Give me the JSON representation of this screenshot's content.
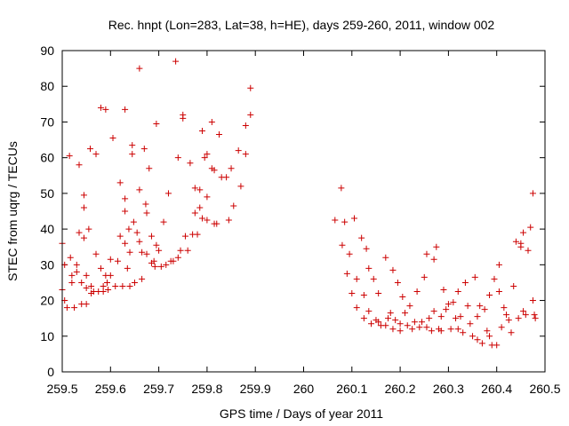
{
  "chart_data": {
    "type": "scatter",
    "title": "Rec. hnpt (Lon=283, Lat=38, h=HE), days 259-260, 2011, window 002",
    "xlabel": "GPS time / Days of year 2011",
    "ylabel": "STEC from uqrg / TECUs",
    "xlim": [
      259.5,
      260.5
    ],
    "ylim": [
      0,
      90
    ],
    "xticks": [
      "259.5",
      "259.6",
      "259.7",
      "259.8",
      "259.9",
      "260",
      "260.1",
      "260.2",
      "260.3",
      "260.4",
      "260.5"
    ],
    "yticks": [
      "0",
      "10",
      "20",
      "30",
      "40",
      "50",
      "60",
      "70",
      "80",
      "90"
    ],
    "grid": false,
    "legend": "none",
    "marker": "+",
    "color": "#cc0000",
    "points": [
      [
        259.5,
        36
      ],
      [
        259.5,
        23
      ],
      [
        259.505,
        30
      ],
      [
        259.505,
        20
      ],
      [
        259.51,
        18
      ],
      [
        259.515,
        60.5
      ],
      [
        259.517,
        32
      ],
      [
        259.52,
        27
      ],
      [
        259.52,
        25
      ],
      [
        259.525,
        18
      ],
      [
        259.53,
        30
      ],
      [
        259.53,
        28
      ],
      [
        259.535,
        58
      ],
      [
        259.535,
        39
      ],
      [
        259.54,
        25
      ],
      [
        259.54,
        19
      ],
      [
        259.545,
        49.5
      ],
      [
        259.545,
        46
      ],
      [
        259.545,
        37.5
      ],
      [
        259.55,
        27
      ],
      [
        259.55,
        23.5
      ],
      [
        259.55,
        19
      ],
      [
        259.555,
        40
      ],
      [
        259.558,
        62.5
      ],
      [
        259.56,
        24
      ],
      [
        259.56,
        22
      ],
      [
        259.565,
        22.5
      ],
      [
        259.57,
        61
      ],
      [
        259.57,
        33
      ],
      [
        259.575,
        22.5
      ],
      [
        259.58,
        74
      ],
      [
        259.58,
        29
      ],
      [
        259.585,
        24
      ],
      [
        259.585,
        22.5
      ],
      [
        259.59,
        73.5
      ],
      [
        259.59,
        27
      ],
      [
        259.593,
        25
      ],
      [
        259.595,
        23
      ],
      [
        259.6,
        31.5
      ],
      [
        259.6,
        27
      ],
      [
        259.605,
        65.5
      ],
      [
        259.61,
        24
      ],
      [
        259.615,
        31
      ],
      [
        259.62,
        53
      ],
      [
        259.62,
        38
      ],
      [
        259.625,
        24
      ],
      [
        259.63,
        73.5
      ],
      [
        259.63,
        48.5
      ],
      [
        259.63,
        45
      ],
      [
        259.63,
        36
      ],
      [
        259.635,
        29
      ],
      [
        259.638,
        40
      ],
      [
        259.64,
        24
      ],
      [
        259.64,
        33.5
      ],
      [
        259.645,
        63.5
      ],
      [
        259.645,
        61
      ],
      [
        259.648,
        42
      ],
      [
        259.65,
        25
      ],
      [
        259.655,
        39
      ],
      [
        259.66,
        85
      ],
      [
        259.66,
        51
      ],
      [
        259.66,
        36.5
      ],
      [
        259.665,
        26
      ],
      [
        259.665,
        33.5
      ],
      [
        259.67,
        62.5
      ],
      [
        259.673,
        47
      ],
      [
        259.675,
        44.5
      ],
      [
        259.675,
        33
      ],
      [
        259.68,
        57
      ],
      [
        259.685,
        38
      ],
      [
        259.685,
        30.5
      ],
      [
        259.69,
        31
      ],
      [
        259.692,
        29.5
      ],
      [
        259.695,
        69.5
      ],
      [
        259.695,
        35.5
      ],
      [
        259.7,
        34
      ],
      [
        259.705,
        29.5
      ],
      [
        259.71,
        42
      ],
      [
        259.715,
        30
      ],
      [
        259.72,
        50
      ],
      [
        259.725,
        31
      ],
      [
        259.73,
        31
      ],
      [
        259.735,
        87
      ],
      [
        259.74,
        60
      ],
      [
        259.74,
        32
      ],
      [
        259.745,
        34
      ],
      [
        259.75,
        72
      ],
      [
        259.75,
        71
      ],
      [
        259.755,
        38
      ],
      [
        259.76,
        34
      ],
      [
        259.765,
        58.5
      ],
      [
        259.77,
        38.5
      ],
      [
        259.775,
        51.5
      ],
      [
        259.775,
        44.5
      ],
      [
        259.78,
        38.5
      ],
      [
        259.785,
        51
      ],
      [
        259.785,
        46
      ],
      [
        259.79,
        67.5
      ],
      [
        259.79,
        43
      ],
      [
        259.795,
        60
      ],
      [
        259.8,
        61
      ],
      [
        259.8,
        49
      ],
      [
        259.8,
        42.5
      ],
      [
        259.81,
        70
      ],
      [
        259.81,
        57
      ],
      [
        259.815,
        56.5
      ],
      [
        259.815,
        41.5
      ],
      [
        259.82,
        41.5
      ],
      [
        259.825,
        66.5
      ],
      [
        259.83,
        54.5
      ],
      [
        259.84,
        54.5
      ],
      [
        259.845,
        42.5
      ],
      [
        259.85,
        57
      ],
      [
        259.855,
        46.5
      ],
      [
        259.865,
        62
      ],
      [
        259.87,
        52
      ],
      [
        259.88,
        61
      ],
      [
        259.88,
        69
      ],
      [
        259.89,
        79.5
      ],
      [
        259.89,
        72
      ],
      [
        260.065,
        42.5
      ],
      [
        260.078,
        51.5
      ],
      [
        260.08,
        35.5
      ],
      [
        260.085,
        42
      ],
      [
        260.09,
        27.5
      ],
      [
        260.095,
        33
      ],
      [
        260.1,
        22
      ],
      [
        260.105,
        43
      ],
      [
        260.11,
        26
      ],
      [
        260.11,
        18
      ],
      [
        260.12,
        37.5
      ],
      [
        260.125,
        21.5
      ],
      [
        260.125,
        15
      ],
      [
        260.13,
        34.5
      ],
      [
        260.135,
        29
      ],
      [
        260.135,
        17
      ],
      [
        260.14,
        13.5
      ],
      [
        260.145,
        26
      ],
      [
        260.15,
        14.5
      ],
      [
        260.155,
        22
      ],
      [
        260.155,
        14
      ],
      [
        260.16,
        13
      ],
      [
        260.17,
        32
      ],
      [
        260.17,
        13
      ],
      [
        260.175,
        15
      ],
      [
        260.18,
        16.5
      ],
      [
        260.185,
        12
      ],
      [
        260.185,
        28.5
      ],
      [
        260.19,
        14.5
      ],
      [
        260.195,
        25
      ],
      [
        260.2,
        13.5
      ],
      [
        260.2,
        11.5
      ],
      [
        260.205,
        21
      ],
      [
        260.21,
        16.5
      ],
      [
        260.215,
        13
      ],
      [
        260.22,
        18.5
      ],
      [
        260.225,
        12
      ],
      [
        260.23,
        14
      ],
      [
        260.235,
        22.5
      ],
      [
        260.24,
        12.5
      ],
      [
        260.245,
        14
      ],
      [
        260.25,
        26.5
      ],
      [
        260.255,
        33
      ],
      [
        260.255,
        12.5
      ],
      [
        260.26,
        15
      ],
      [
        260.265,
        11.5
      ],
      [
        260.27,
        31.5
      ],
      [
        260.27,
        17
      ],
      [
        260.275,
        35
      ],
      [
        260.28,
        12
      ],
      [
        260.285,
        15.5
      ],
      [
        260.285,
        11.5
      ],
      [
        260.29,
        23
      ],
      [
        260.295,
        17.5
      ],
      [
        260.3,
        19
      ],
      [
        260.305,
        12
      ],
      [
        260.31,
        19.5
      ],
      [
        260.315,
        15
      ],
      [
        260.32,
        12
      ],
      [
        260.32,
        22.5
      ],
      [
        260.325,
        15.5
      ],
      [
        260.33,
        11
      ],
      [
        260.335,
        25
      ],
      [
        260.34,
        18.5
      ],
      [
        260.345,
        13.5
      ],
      [
        260.35,
        10
      ],
      [
        260.355,
        26.5
      ],
      [
        260.36,
        15.5
      ],
      [
        260.36,
        9
      ],
      [
        260.365,
        18.5
      ],
      [
        260.37,
        8
      ],
      [
        260.375,
        17.5
      ],
      [
        260.38,
        11.5
      ],
      [
        260.385,
        21.5
      ],
      [
        260.385,
        10
      ],
      [
        260.39,
        7.5
      ],
      [
        260.395,
        26
      ],
      [
        260.4,
        7.5
      ],
      [
        260.405,
        30
      ],
      [
        260.405,
        22.5
      ],
      [
        260.41,
        12.5
      ],
      [
        260.415,
        18
      ],
      [
        260.42,
        16
      ],
      [
        260.425,
        14.5
      ],
      [
        260.43,
        11
      ],
      [
        260.435,
        24
      ],
      [
        260.44,
        36.5
      ],
      [
        260.445,
        15
      ],
      [
        260.45,
        36
      ],
      [
        260.45,
        35
      ],
      [
        260.455,
        39
      ],
      [
        260.455,
        17
      ],
      [
        260.46,
        16
      ],
      [
        260.465,
        34
      ],
      [
        260.47,
        40.5
      ],
      [
        260.475,
        50
      ],
      [
        260.475,
        20
      ],
      [
        260.478,
        16
      ],
      [
        260.48,
        15
      ]
    ]
  }
}
